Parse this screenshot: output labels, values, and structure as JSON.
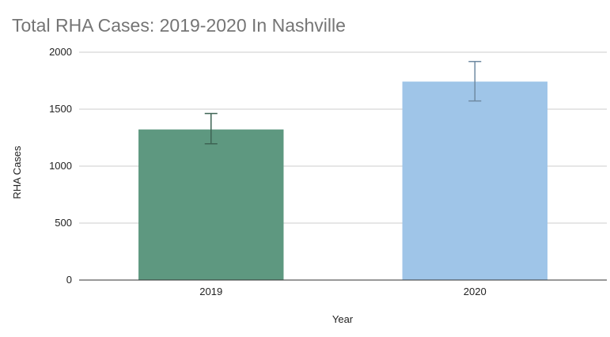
{
  "chart_data": {
    "type": "bar",
    "title": "Total RHA Cases: 2019-2020 In Nashville",
    "xlabel": "Year",
    "ylabel": "RHA Cases",
    "categories": [
      "2019",
      "2020"
    ],
    "values": [
      1322,
      1742
    ],
    "error_bars": [
      {
        "low": 1196,
        "high": 1462
      },
      {
        "low": 1572,
        "high": 1918
      }
    ],
    "bar_colors": [
      "#5e9880",
      "#9fc5e8"
    ],
    "error_bar_colors": [
      "#3d6353",
      "#6f8aa2"
    ],
    "ylim": [
      0,
      2000
    ],
    "yticks": [
      0,
      500,
      1000,
      1500,
      2000
    ],
    "grid": true,
    "legend": "none"
  }
}
